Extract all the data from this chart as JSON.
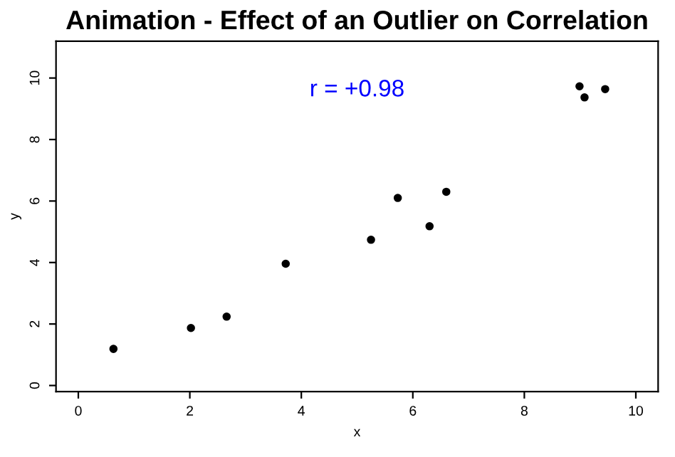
{
  "chart_data": {
    "type": "scatter",
    "title": "Animation - Effect of an Outlier on Correlation",
    "xlabel": "x",
    "ylabel": "y",
    "x": [
      0.63,
      2.02,
      2.66,
      3.72,
      5.25,
      5.73,
      6.3,
      6.6,
      8.99,
      9.08,
      9.45
    ],
    "series": [
      {
        "color": "#000000",
        "values": [
          1.19,
          1.87,
          2.24,
          3.96,
          4.74,
          6.1,
          5.18,
          6.3,
          9.73,
          9.37,
          9.64
        ]
      }
    ],
    "annotations": [
      "r = +0.98"
    ],
    "xlim": [
      -0.4,
      10.4
    ],
    "ylim": [
      -0.2,
      11.2
    ],
    "xticks": [
      0,
      2,
      4,
      6,
      8,
      10
    ],
    "yticks": [
      0,
      2,
      4,
      6,
      8,
      10
    ],
    "marker": "circle",
    "grid": false
  }
}
